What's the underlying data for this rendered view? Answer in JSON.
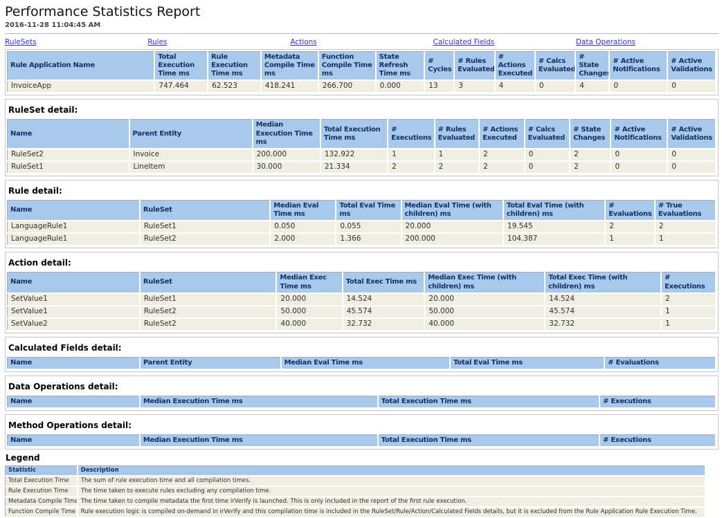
{
  "page": {
    "title": "Performance Statistics Report",
    "timestamp": "2016-11-28 11:04:45 AM"
  },
  "colors": {
    "header_bg": "#a8c9ec",
    "header_text": "#113366",
    "row_bg": "#efeee1",
    "link": "#3333cc"
  },
  "nav": {
    "links": [
      {
        "label": "RuleSets"
      },
      {
        "label": "Rules"
      },
      {
        "label": "Actions"
      },
      {
        "label": "Calculated Fields"
      },
      {
        "label": "Data Operations"
      }
    ]
  },
  "summary_table": {
    "columns": [
      "Rule Application Name",
      "Total Execution Time ms",
      "Rule Execution Time ms",
      "Metadata Compile Time ms",
      "Function Compile Time ms",
      "State Refresh Time ms",
      "# Cycles",
      "# Rules Evaluated",
      "# Actions Executed",
      "# Calcs Evaluated",
      "# State Changes",
      "# Active Notifications",
      "# Active Validations"
    ],
    "col_widths": [
      20.8,
      7.5,
      7.5,
      8.1,
      8.1,
      6.9,
      4.2,
      5.7,
      5.7,
      5.7,
      4.8,
      8.2,
      6.8
    ],
    "rows": [
      [
        "InvoiceApp",
        "747.464",
        "62.523",
        "418.241",
        "266.700",
        "0.000",
        "13",
        "3",
        "4",
        "0",
        "4",
        "0",
        "0"
      ]
    ]
  },
  "sections": [
    {
      "id": "ruleset-detail",
      "heading": "RuleSet detail:",
      "columns": [
        "Name",
        "Parent Entity",
        "Median Execution Time ms",
        "Total Execution Time ms",
        "# Executions",
        "# Rules Evaluated",
        "# Actions Executed",
        "# Calcs Evaluated",
        "# State Changes",
        "# Active Notifications",
        "# Active Validations"
      ],
      "col_widths": [
        17.2,
        17.4,
        9.6,
        9.5,
        6.6,
        6.3,
        6.4,
        6.4,
        5.8,
        8.0,
        6.8
      ],
      "rows": [
        [
          "RuleSet2",
          "Invoice",
          "200.000",
          "132.922",
          "1",
          "1",
          "2",
          "0",
          "2",
          "0",
          "0"
        ],
        [
          "RuleSet1",
          "LineItem",
          "30.000",
          "21.334",
          "2",
          "2",
          "2",
          "0",
          "2",
          "0",
          "0"
        ]
      ]
    },
    {
      "id": "rule-detail",
      "heading": "Rule detail:",
      "columns": [
        "Name",
        "RuleSet",
        "Median Eval Time ms",
        "Total Eval Time ms",
        "Median Eval Time (with children) ms",
        "Total Eval Time (with children) ms",
        "# Evaluations",
        "# True Evaluations"
      ],
      "col_widths": [
        18.7,
        18.4,
        9.3,
        9.2,
        14.4,
        14.4,
        7.0,
        8.6
      ],
      "rows": [
        [
          "LanguageRule1",
          "RuleSet1",
          "0.050",
          "0.055",
          "20.000",
          "19.545",
          "2",
          "2"
        ],
        [
          "LanguageRule1",
          "RuleSet2",
          "2.000",
          "1.366",
          "200.000",
          "104.387",
          "1",
          "1"
        ]
      ]
    },
    {
      "id": "action-detail",
      "heading": "Action detail:",
      "columns": [
        "Name",
        "RuleSet",
        "Median Exec Time ms",
        "Total Exec Time ms",
        "Median Exec Time (with children) ms",
        "Total Exec Time (with children) ms",
        "# Executions"
      ],
      "col_widths": [
        18.7,
        19.3,
        9.3,
        11.6,
        17.0,
        16.4,
        7.7
      ],
      "rows": [
        [
          "SetValue1",
          "RuleSet1",
          "20.000",
          "14.524",
          "20.000",
          "14.524",
          "2"
        ],
        [
          "SetValue1",
          "RuleSet2",
          "50.000",
          "45.574",
          "50.000",
          "45.574",
          "1"
        ],
        [
          "SetValue2",
          "RuleSet2",
          "40.000",
          "32.732",
          "40.000",
          "32.732",
          "1"
        ]
      ]
    },
    {
      "id": "calculated-fields-detail",
      "heading": "Calculated Fields detail:",
      "columns": [
        "Name",
        "Parent Entity",
        "Median Eval Time ms",
        "Total Eval Time ms",
        "# Evaluations"
      ],
      "col_widths": [
        18.7,
        19.9,
        23.9,
        21.8,
        15.7
      ],
      "rows": []
    },
    {
      "id": "data-operations-detail",
      "heading": "Data Operations detail:",
      "columns": [
        "Name",
        "Median Execution Time ms",
        "Total Execution Time ms",
        "# Executions"
      ],
      "col_widths": [
        18.7,
        33.6,
        31.3,
        16.4
      ],
      "rows": []
    },
    {
      "id": "method-operations-detail",
      "heading": "Method Operations detail:",
      "columns": [
        "Name",
        "Median Execution Time ms",
        "Total Execution Time ms",
        "# Executions"
      ],
      "col_widths": [
        18.7,
        33.6,
        31.3,
        16.4
      ],
      "rows": []
    }
  ],
  "legend": {
    "heading": "Legend",
    "columns": [
      "Statistic",
      "Description"
    ],
    "col_widths": [
      10.3,
      89.7
    ],
    "rows": [
      [
        "Total Execution Time",
        "The sum of rule execution time and all compilation times."
      ],
      [
        "Rule Execution Time",
        "The time taken to execute rules excluding any compilation time."
      ],
      [
        "Metadata Compile Time",
        "The time taken to compile metadata the first time irVerify is launched. This is only included in the report of the first rule execution."
      ],
      [
        "Function Compile Time",
        "Rule execution logic is compiled on-demand in irVerify and this compilation time is included in the RuleSet/Rule/Action/Calculated Fields details, but it is excluded from the Rule Application Rule Execution Time."
      ]
    ]
  }
}
